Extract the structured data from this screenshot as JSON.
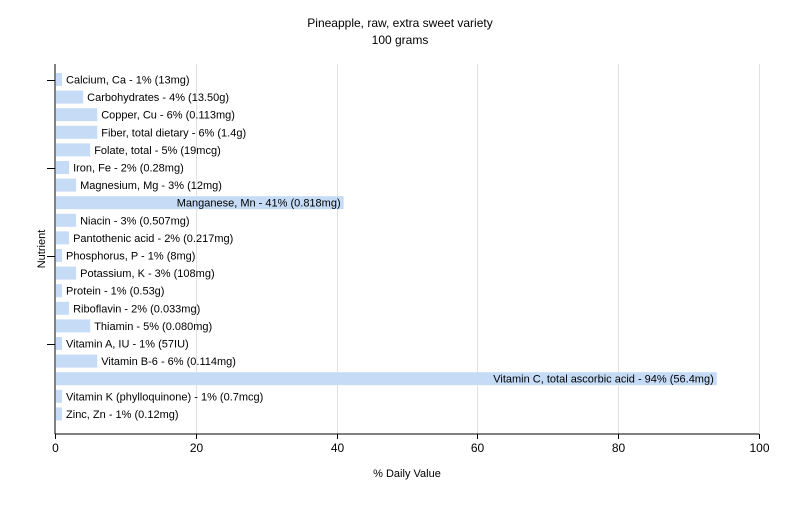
{
  "chart_data": {
    "type": "bar",
    "orientation": "horizontal",
    "title": "Pineapple, raw, extra sweet variety",
    "subtitle": "100 grams",
    "xlabel": "% Daily Value",
    "ylabel": "Nutrient",
    "xlim": [
      0,
      100
    ],
    "x_ticks": [
      0,
      20,
      40,
      60,
      80,
      100
    ],
    "grid": true,
    "bar_color": "#c6dcf6",
    "categories": [
      "Calcium, Ca - 1% (13mg)",
      "Carbohydrates - 4% (13.50g)",
      "Copper, Cu - 6% (0.113mg)",
      "Fiber, total dietary - 6% (1.4g)",
      "Folate, total - 5% (19mcg)",
      "Iron, Fe - 2% (0.28mg)",
      "Magnesium, Mg - 3% (12mg)",
      "Manganese, Mn - 41% (0.818mg)",
      "Niacin - 3% (0.507mg)",
      "Pantothenic acid - 2% (0.217mg)",
      "Phosphorus, P - 1% (8mg)",
      "Potassium, K - 3% (108mg)",
      "Protein - 1% (0.53g)",
      "Riboflavin - 2% (0.033mg)",
      "Thiamin - 5% (0.080mg)",
      "Vitamin A, IU - 1% (57IU)",
      "Vitamin B-6 - 6% (0.114mg)",
      "Vitamin C, total ascorbic acid - 94% (56.4mg)",
      "Vitamin K (phylloquinone) - 1% (0.7mcg)",
      "Zinc, Zn - 1% (0.12mg)"
    ],
    "values": [
      1,
      4,
      6,
      6,
      5,
      2,
      3,
      41,
      3,
      2,
      1,
      3,
      1,
      2,
      5,
      1,
      6,
      94,
      1,
      1
    ]
  }
}
